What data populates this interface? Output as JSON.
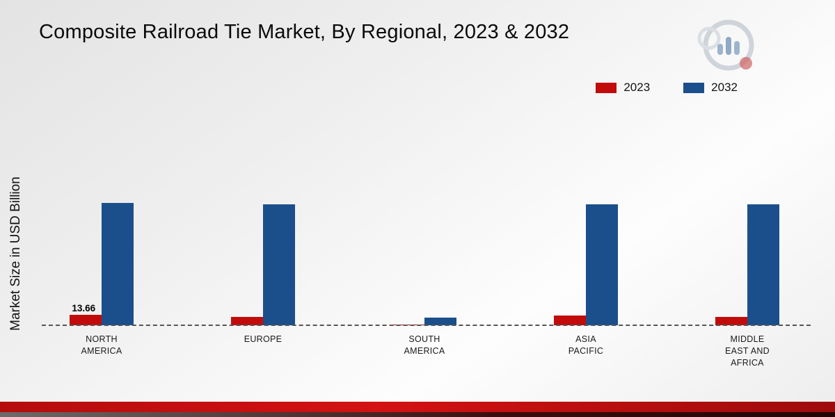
{
  "title": "Composite Railroad Tie Market, By Regional, 2023 & 2032",
  "ylabel": "Market Size in USD Billion",
  "legend": [
    {
      "label": "2023",
      "color": "#c20c0c"
    },
    {
      "label": "2032",
      "color": "#1a4f8b"
    }
  ],
  "chart_data": {
    "type": "bar",
    "categories": [
      "NORTH AMERICA",
      "EUROPE",
      "SOUTH AMERICA",
      "ASIA PACIFIC",
      "MIDDLE EAST AND AFRICA"
    ],
    "series": [
      {
        "name": "2023",
        "color": "#c20c0c",
        "values": [
          13.66,
          10.5,
          1.2,
          12.5,
          10.8
        ]
      },
      {
        "name": "2032",
        "color": "#1a4f8b",
        "values": [
          158,
          157,
          10,
          157,
          157
        ]
      }
    ],
    "title": "Composite Railroad Tie Market, By Regional, 2023 & 2032",
    "xlabel": "",
    "ylabel": "Market Size in USD Billion",
    "ylim": [
      0,
      180
    ],
    "baseline_style": "dashed",
    "legend_position": "top-right",
    "data_labels": [
      {
        "series": "2023",
        "category": "NORTH AMERICA",
        "text": "13.66"
      }
    ]
  }
}
